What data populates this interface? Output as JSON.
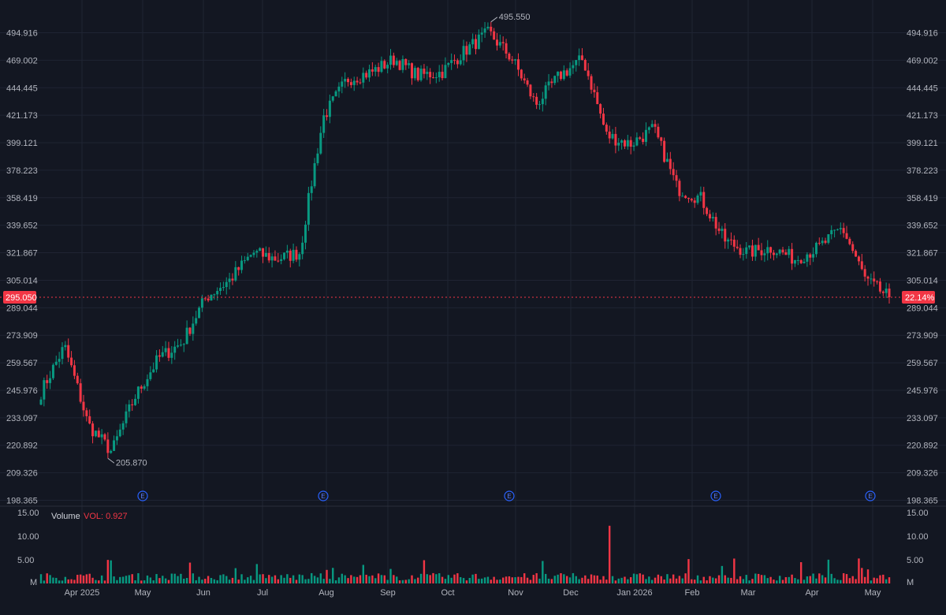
{
  "colors": {
    "background": "#131722",
    "grid": "#1f2433",
    "up": "#089981",
    "down": "#f23645",
    "text": "#b2b5be",
    "earnings": "#2962ff"
  },
  "chart_data": [
    {
      "type": "candlestick",
      "title": "",
      "x_tick_labels": [
        "Apr 2025",
        "May",
        "Jun",
        "Jul",
        "Aug",
        "Sep",
        "Oct",
        "Nov",
        "Dec",
        "Jan 2026",
        "Feb",
        "Mar",
        "Apr",
        "May"
      ],
      "y_scale": "log",
      "y_tick_labels": [
        "494.916",
        "469.002",
        "444.445",
        "421.173",
        "399.121",
        "378.223",
        "358.419",
        "339.652",
        "321.867",
        "305.014",
        "289.044",
        "273.909",
        "259.567",
        "245.976",
        "233.097",
        "220.892",
        "209.326",
        "198.365"
      ],
      "ylim": [
        198.365,
        494.916
      ],
      "grid": true,
      "last_price_label": "295.050",
      "last_price": 295.05,
      "change_label": "22.14%",
      "high_annotation": "495.550",
      "low_annotation": "205.870",
      "earnings_marker_label": "E",
      "earnings_months": [
        "Apr 2025",
        "Jul",
        "Oct",
        "Jan 2026",
        "Apr"
      ],
      "series": [
        {
          "x": "Mar 2025",
          "close": 245
        },
        {
          "x": "Apr 2025",
          "close": 268
        },
        {
          "x": "Apr 2025",
          "close": 230
        },
        {
          "x": "Apr 2025",
          "close": 218
        },
        {
          "x": "May",
          "close": 243
        },
        {
          "x": "May",
          "close": 262
        },
        {
          "x": "May",
          "close": 270
        },
        {
          "x": "Jun",
          "close": 295
        },
        {
          "x": "Jun",
          "close": 305
        },
        {
          "x": "Jul",
          "close": 322
        },
        {
          "x": "Jul",
          "close": 318
        },
        {
          "x": "Jul",
          "close": 322
        },
        {
          "x": "Aug",
          "close": 420
        },
        {
          "x": "Aug",
          "close": 452
        },
        {
          "x": "Aug",
          "close": 458
        },
        {
          "x": "Sep",
          "close": 470
        },
        {
          "x": "Sep",
          "close": 455
        },
        {
          "x": "Sep",
          "close": 458
        },
        {
          "x": "Oct",
          "close": 478
        },
        {
          "x": "Oct",
          "close": 495
        },
        {
          "x": "Oct",
          "close": 470
        },
        {
          "x": "Nov",
          "close": 430
        },
        {
          "x": "Nov",
          "close": 455
        },
        {
          "x": "Dec",
          "close": 470
        },
        {
          "x": "Dec",
          "close": 405
        },
        {
          "x": "Dec",
          "close": 398
        },
        {
          "x": "Jan 2026",
          "close": 410
        },
        {
          "x": "Jan 2026",
          "close": 365
        },
        {
          "x": "Jan 2026",
          "close": 358
        },
        {
          "x": "Feb",
          "close": 330
        },
        {
          "x": "Feb",
          "close": 322
        },
        {
          "x": "Mar",
          "close": 325
        },
        {
          "x": "Mar",
          "close": 318
        },
        {
          "x": "Apr",
          "close": 325
        },
        {
          "x": "Apr",
          "close": 338
        },
        {
          "x": "Apr",
          "close": 305
        },
        {
          "x": "May",
          "close": 295
        }
      ]
    },
    {
      "type": "bar",
      "title": "Volume",
      "value_label": "VOL: 0.927",
      "y_tick_labels": [
        "15.00",
        "10.00",
        "5.00",
        "M"
      ],
      "ylim": [
        0,
        15
      ],
      "spike_value": 12.2
    }
  ]
}
